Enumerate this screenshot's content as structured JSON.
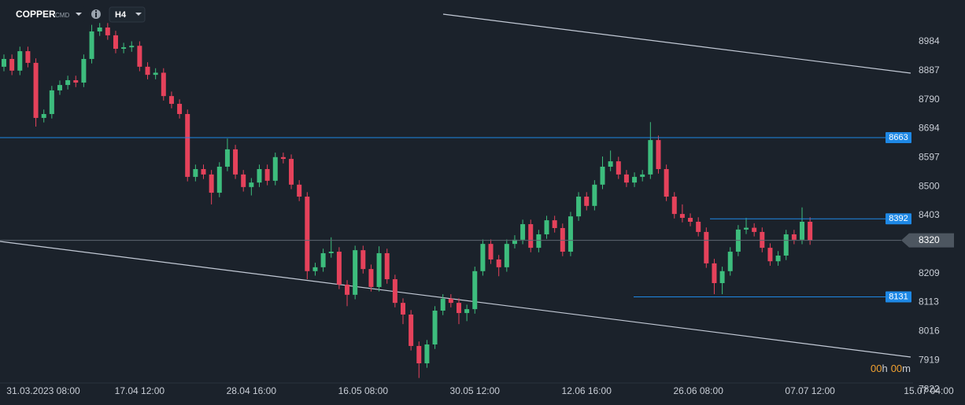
{
  "header": {
    "symbol": "COPPER",
    "market": "CMD",
    "timeframe": "H4"
  },
  "timer": [
    "00",
    "h",
    "00",
    "m"
  ],
  "chart_data": {
    "type": "candlestick",
    "categories": [
      null,
      null,
      null,
      "31.03.2023 08:00",
      null,
      null,
      null,
      null,
      null,
      null,
      null,
      null,
      null,
      null,
      null,
      null,
      null,
      "17.04 12:00",
      null,
      null,
      null,
      null,
      null,
      null,
      null,
      null,
      null,
      null,
      null,
      null,
      null,
      "28.04 16:00",
      null,
      null,
      null,
      null,
      null,
      null,
      null,
      null,
      null,
      null,
      null,
      null,
      null,
      "16.05 08:00",
      null,
      null,
      null,
      null,
      null,
      null,
      null,
      null,
      null,
      null,
      null,
      null,
      null,
      "30.05 12:00",
      null,
      null,
      null,
      null,
      null,
      null,
      null,
      null,
      null,
      null,
      null,
      null,
      null,
      "12.06 16:00",
      null,
      null,
      null,
      null,
      null,
      null,
      null,
      null,
      null,
      null,
      null,
      null,
      null,
      "26.06 08:00",
      null,
      null,
      null,
      null,
      null,
      null,
      null,
      null,
      null,
      null,
      null,
      null,
      null,
      "07.07 12:00",
      null,
      null,
      null,
      null,
      null,
      null,
      null,
      null,
      null,
      null,
      null,
      null,
      null,
      null,
      "15.07 04:00"
    ],
    "open": [
      8900,
      8926,
      8887,
      8952,
      8913,
      8729,
      8742,
      8821,
      8839,
      8855,
      8847,
      8926,
      9018,
      9031,
      9005,
      8960,
      8965,
      8970,
      8900,
      8873,
      8880,
      8802,
      8776,
      8742,
      8532,
      8558,
      8540,
      8479,
      8566,
      8624,
      8540,
      8498,
      8513,
      8558,
      8519,
      8598,
      8592,
      8506,
      8466,
      8217,
      8230,
      8277,
      8282,
      8172,
      8138,
      8287,
      8224,
      8164,
      8277,
      8190,
      8111,
      8072,
      7967,
      7909,
      7972,
      8085,
      8125,
      8111,
      8077,
      8090,
      8217,
      8308,
      8256,
      8230,
      8308,
      8322,
      8374,
      8295,
      8340,
      8387,
      8361,
      8282,
      8400,
      8466,
      8435,
      8506,
      8566,
      8584,
      8540,
      8513,
      8532,
      8540,
      8655,
      8558,
      8466,
      8408,
      8395,
      8382,
      8348,
      8243,
      8177,
      8217,
      8282,
      8356,
      8362,
      8348,
      8295,
      8250,
      8269,
      8340,
      8322,
      8382,
      null,
      null,
      null,
      null,
      null,
      null,
      null,
      null,
      null,
      null,
      null,
      null,
      null,
      null,
      null
    ],
    "high": [
      8941,
      8941,
      8967,
      8967,
      8928,
      8757,
      8836,
      8854,
      8870,
      8870,
      8941,
      9040,
      9046,
      9046,
      9020,
      8980,
      8985,
      8985,
      8915,
      8895,
      8895,
      8817,
      8791,
      8757,
      8573,
      8573,
      8555,
      8581,
      8660,
      8639,
      8555,
      8528,
      8573,
      8573,
      8613,
      8613,
      8607,
      8521,
      8481,
      8245,
      8292,
      8330,
      8297,
      8187,
      8302,
      8302,
      8239,
      8300,
      8292,
      8205,
      8126,
      8087,
      7982,
      7987,
      8100,
      8140,
      8140,
      8126,
      8105,
      8232,
      8323,
      8323,
      8271,
      8323,
      8337,
      8389,
      8389,
      8355,
      8402,
      8402,
      8376,
      8415,
      8481,
      8481,
      8521,
      8600,
      8620,
      8599,
      8555,
      8547,
      8555,
      8715,
      8670,
      8573,
      8481,
      8440,
      8410,
      8397,
      8363,
      8258,
      8232,
      8297,
      8371,
      8395,
      8377,
      8363,
      8310,
      8284,
      8355,
      8355,
      8430,
      8397,
      null,
      null,
      null,
      null,
      null,
      null,
      null,
      null,
      null,
      null,
      null,
      null,
      null,
      null,
      null
    ],
    "low": [
      8885,
      8872,
      8872,
      8898,
      8700,
      8714,
      8727,
      8806,
      8824,
      8832,
      8832,
      8911,
      9003,
      8990,
      8945,
      8945,
      8950,
      8885,
      8858,
      8858,
      8787,
      8761,
      8727,
      8517,
      8517,
      8525,
      8440,
      8464,
      8551,
      8525,
      8483,
      8470,
      8498,
      8504,
      8504,
      8577,
      8491,
      8451,
      8190,
      8202,
      8215,
      8262,
      8157,
      8100,
      8123,
      8209,
      8149,
      8149,
      8175,
      8096,
      8040,
      7952,
      7860,
      7894,
      7957,
      8070,
      8096,
      8040,
      8050,
      8075,
      8202,
      8241,
      8200,
      8215,
      8293,
      8307,
      8280,
      8280,
      8325,
      8346,
      8267,
      8267,
      8385,
      8420,
      8420,
      8491,
      8551,
      8525,
      8498,
      8498,
      8517,
      8525,
      8543,
      8451,
      8393,
      8380,
      8367,
      8333,
      8228,
      8140,
      8140,
      8202,
      8267,
      8341,
      8333,
      8280,
      8235,
      8235,
      8254,
      8307,
      8307,
      8305,
      null,
      null,
      null,
      null,
      null,
      null,
      null,
      null,
      null,
      null,
      null,
      null,
      null,
      null,
      null
    ],
    "close": [
      8926,
      8887,
      8952,
      8913,
      8729,
      8742,
      8821,
      8839,
      8855,
      8847,
      8926,
      9018,
      9031,
      9005,
      8960,
      8965,
      8970,
      8900,
      8873,
      8880,
      8802,
      8776,
      8742,
      8532,
      8558,
      8540,
      8479,
      8566,
      8624,
      8540,
      8498,
      8513,
      8558,
      8519,
      8598,
      8592,
      8506,
      8466,
      8217,
      8230,
      8277,
      8282,
      8172,
      8138,
      8287,
      8224,
      8164,
      8277,
      8190,
      8111,
      8072,
      7967,
      7909,
      7972,
      8085,
      8125,
      8111,
      8077,
      8090,
      8217,
      8308,
      8256,
      8230,
      8308,
      8322,
      8374,
      8295,
      8340,
      8387,
      8361,
      8282,
      8400,
      8466,
      8435,
      8506,
      8566,
      8584,
      8540,
      8513,
      8532,
      8540,
      8655,
      8558,
      8466,
      8408,
      8395,
      8382,
      8348,
      8243,
      8177,
      8217,
      8282,
      8356,
      8362,
      8348,
      8295,
      8250,
      8269,
      8340,
      8322,
      8382,
      8320,
      null,
      null,
      null,
      null,
      null,
      null,
      null,
      null,
      null,
      null,
      null,
      null,
      null,
      null,
      null
    ],
    "up_color": "#3dbd7d",
    "down_color": "#e5425b",
    "ylim": [
      7796,
      9123
    ],
    "yticks": [
      8984,
      8887,
      8790,
      8694,
      8597,
      8500,
      8403,
      8209,
      8113,
      8016,
      7919,
      7822
    ],
    "last_price": 8320,
    "levels": [
      {
        "value": 8663,
        "color": "#1e88e5"
      },
      {
        "value": 8392,
        "color": "#1e88e5"
      },
      {
        "value": 8131,
        "color": "#1e88e5"
      }
    ]
  }
}
